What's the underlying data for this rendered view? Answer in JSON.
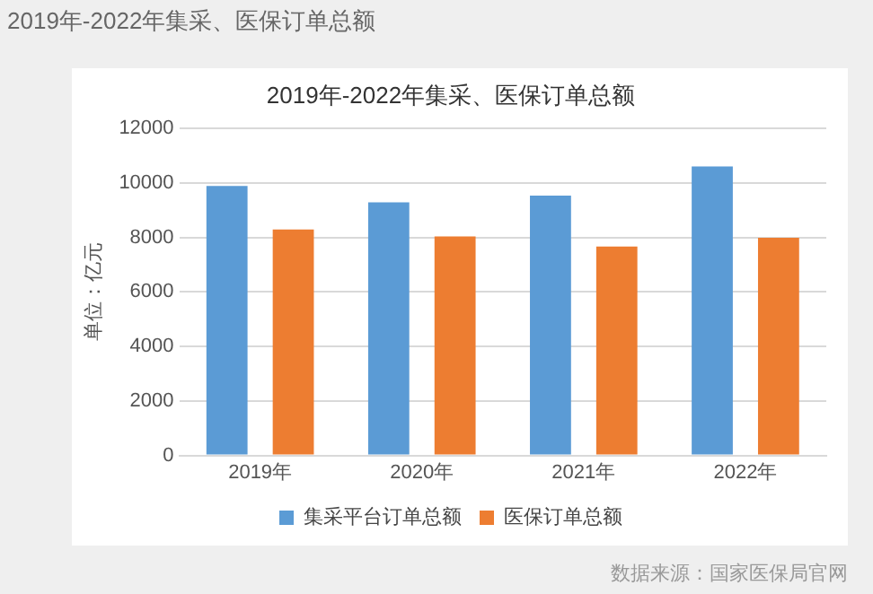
{
  "chart_data": {
    "type": "bar",
    "title": "2019年-2022年集采、医保订单总额",
    "ylabel": "单位：亿元",
    "categories": [
      "2019年",
      "2020年",
      "2021年",
      "2022年"
    ],
    "series": [
      {
        "name": "集采平台订单总额",
        "color": "#5b9bd5",
        "values": [
          9890,
          9290,
          9540,
          10610
        ]
      },
      {
        "name": "医保订单总额",
        "color": "#ed7d31",
        "values": [
          8290,
          8040,
          7670,
          7990
        ]
      }
    ],
    "ylim": [
      0,
      12000
    ],
    "yticks": [
      0,
      2000,
      4000,
      6000,
      8000,
      10000,
      12000
    ],
    "grid": "y",
    "legend": "bottom",
    "annotations": [
      "2019年-2022年集采、医保订单总额",
      "数据来源：国家医保局官网"
    ]
  }
}
